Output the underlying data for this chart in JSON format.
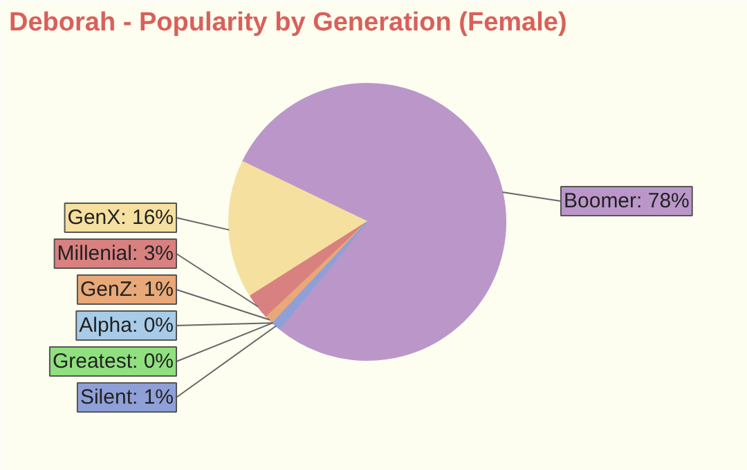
{
  "chart_data": {
    "type": "pie",
    "title": "Deborah - Popularity by Generation (Female)",
    "categories": [
      "Boomer",
      "GenX",
      "Millenial",
      "GenZ",
      "Alpha",
      "Greatest",
      "Silent"
    ],
    "values": [
      78,
      16,
      3,
      1,
      0,
      0,
      1
    ],
    "value_labels": [
      "78%",
      "16%",
      "3%",
      "1%",
      "0%",
      "0%",
      "1%"
    ],
    "colors": [
      "#bb97c9",
      "#f5e0a0",
      "#d98080",
      "#e8a878",
      "#a8cce8",
      "#90e080",
      "#8fa0d8"
    ]
  }
}
